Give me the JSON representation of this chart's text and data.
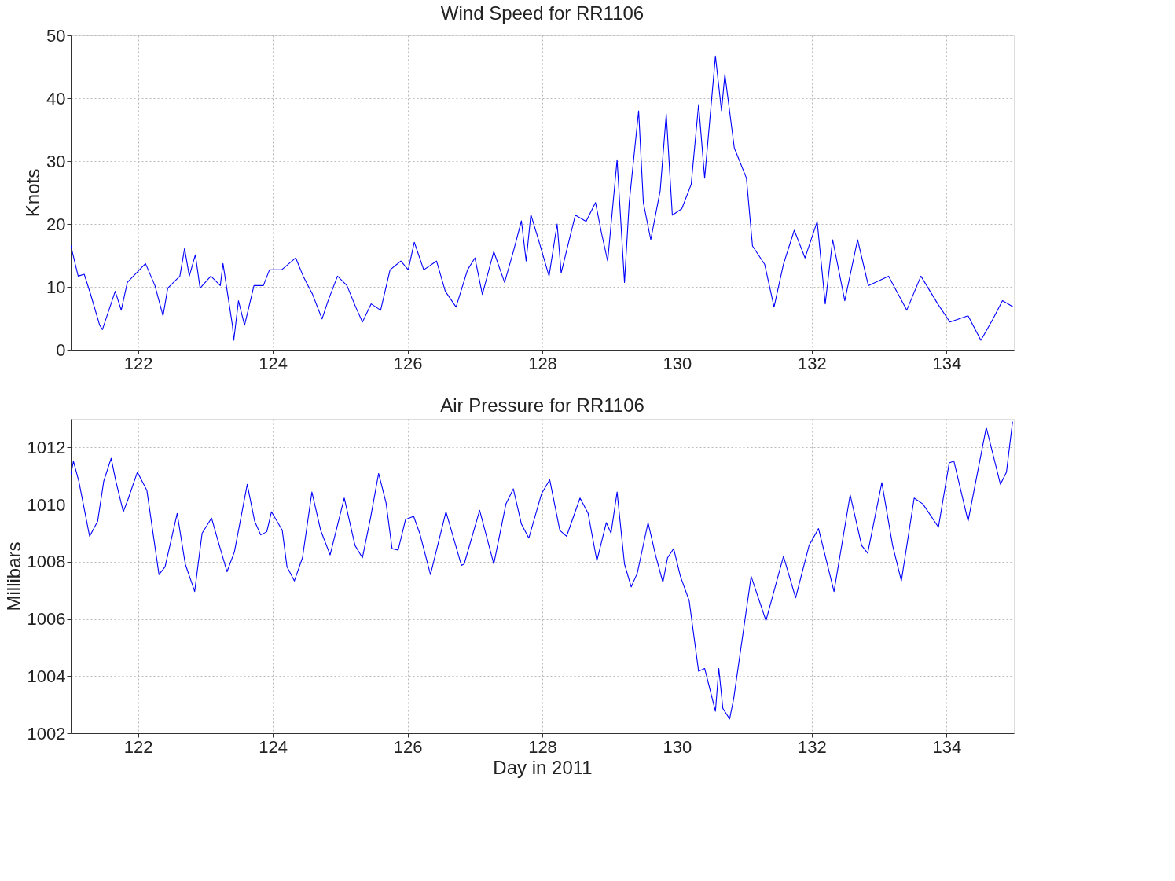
{
  "chart_data": [
    {
      "type": "line",
      "title": "Wind Speed for RR1106",
      "ylabel": "Knots",
      "xlim": [
        121,
        135
      ],
      "ylim": [
        0,
        50
      ],
      "xticks": [
        122,
        124,
        126,
        128,
        130,
        132,
        134
      ],
      "yticks": [
        0,
        10,
        20,
        30,
        40,
        50
      ],
      "grid": true,
      "series": [
        {
          "color": "#0000ff",
          "x": [
            121.0,
            121.11,
            121.2,
            121.29,
            121.43,
            121.47,
            121.66,
            121.75,
            121.84,
            122.02,
            122.11,
            122.25,
            122.37,
            122.44,
            122.62,
            122.69,
            122.76,
            122.85,
            122.92,
            123.08,
            123.22,
            123.26,
            123.4,
            123.42,
            123.49,
            123.58,
            123.72,
            123.86,
            123.95,
            124.13,
            124.34,
            124.45,
            124.59,
            124.73,
            124.82,
            124.96,
            125.1,
            125.23,
            125.33,
            125.46,
            125.6,
            125.74,
            125.9,
            126.01,
            126.1,
            126.24,
            126.43,
            126.56,
            126.72,
            126.89,
            127.0,
            127.11,
            127.28,
            127.44,
            127.57,
            127.69,
            127.76,
            127.83,
            127.94,
            128.1,
            128.22,
            128.28,
            128.38,
            128.49,
            128.65,
            128.79,
            128.88,
            128.97,
            129.11,
            129.22,
            129.29,
            129.43,
            129.5,
            129.61,
            129.75,
            129.84,
            129.93,
            130.07,
            130.21,
            130.32,
            130.41,
            130.57,
            130.66,
            130.71,
            130.85,
            131.03,
            131.12,
            131.3,
            131.44,
            131.58,
            131.74,
            131.9,
            132.08,
            132.2,
            132.31,
            132.49,
            132.68,
            132.84,
            133.14,
            133.41,
            133.62,
            133.87,
            134.05,
            134.32,
            134.51,
            134.69,
            134.83,
            134.99
          ],
          "values": [
            16.6,
            11.7,
            12,
            9,
            3.9,
            3.2,
            9.3,
            6.3,
            10.7,
            12.7,
            13.7,
            10.2,
            5.4,
            9.8,
            11.7,
            16.1,
            11.7,
            15.1,
            9.8,
            11.7,
            10.2,
            13.7,
            3.9,
            1.5,
            7.8,
            3.9,
            10.2,
            10.2,
            12.7,
            12.7,
            14.6,
            11.7,
            8.8,
            4.9,
            7.8,
            11.7,
            10.2,
            6.8,
            4.4,
            7.3,
            6.3,
            12.7,
            14.1,
            12.7,
            17.1,
            12.7,
            14.1,
            9.3,
            6.8,
            12.7,
            14.6,
            8.8,
            15.6,
            10.7,
            15.6,
            20.5,
            14.1,
            21.5,
            17.6,
            11.7,
            20,
            12.2,
            16.6,
            21.4,
            20.4,
            23.4,
            18.5,
            14.1,
            30.2,
            10.7,
            23.4,
            38,
            23.4,
            17.5,
            25.3,
            37.5,
            21.4,
            22.4,
            26.3,
            39,
            27.3,
            46.7,
            38,
            43.8,
            32.1,
            27.3,
            16.5,
            13.6,
            6.8,
            13.6,
            19,
            14.6,
            20.4,
            7.3,
            17.5,
            7.8,
            17.5,
            10.2,
            11.7,
            6.3,
            11.7,
            7.3,
            4.4,
            5.4,
            1.5,
            4.9,
            7.8,
            6.8
          ]
        }
      ]
    },
    {
      "type": "line",
      "title": "Air Pressure for RR1106",
      "xlabel": "Day in 2011",
      "ylabel": "Millibars",
      "xlim": [
        121,
        135
      ],
      "ylim": [
        1002,
        1013
      ],
      "xticks": [
        122,
        124,
        126,
        128,
        130,
        132,
        134
      ],
      "yticks": [
        1002,
        1004,
        1006,
        1008,
        1010,
        1012
      ],
      "grid": true,
      "series": [
        {
          "color": "#0000ff",
          "x": [
            121.0,
            121.04,
            121.12,
            121.28,
            121.4,
            121.49,
            121.6,
            121.67,
            121.78,
            121.85,
            121.99,
            122.13,
            122.31,
            122.4,
            122.58,
            122.7,
            122.84,
            122.95,
            123.09,
            123.18,
            123.32,
            123.43,
            123.62,
            123.73,
            123.82,
            123.91,
            123.98,
            124.14,
            124.21,
            124.32,
            124.44,
            124.58,
            124.71,
            124.85,
            125.06,
            125.22,
            125.33,
            125.45,
            125.57,
            125.68,
            125.77,
            125.86,
            125.97,
            126.09,
            126.18,
            126.34,
            126.57,
            126.8,
            126.84,
            127.07,
            127.28,
            127.46,
            127.57,
            127.69,
            127.8,
            127.99,
            128.11,
            128.26,
            128.36,
            128.56,
            128.68,
            128.81,
            128.95,
            129.02,
            129.11,
            129.22,
            129.32,
            129.41,
            129.57,
            129.68,
            129.79,
            129.86,
            129.95,
            130.05,
            130.18,
            130.32,
            130.41,
            130.57,
            130.62,
            130.68,
            130.78,
            130.84,
            131.1,
            131.32,
            131.58,
            131.76,
            131.96,
            132.1,
            132.33,
            132.57,
            132.74,
            132.83,
            133.04,
            133.2,
            133.33,
            133.52,
            133.65,
            133.88,
            134.04,
            134.11,
            134.32,
            134.59,
            134.8,
            134.89,
            134.98
          ],
          "values": [
            1011.03,
            1011.52,
            1010.82,
            1008.89,
            1009.42,
            1010.82,
            1011.62,
            1010.82,
            1009.75,
            1010.18,
            1011.14,
            1010.5,
            1007.55,
            1007.82,
            1009.69,
            1007.92,
            1006.96,
            1009,
            1009.53,
            1008.78,
            1007.65,
            1008.35,
            1010.71,
            1009.42,
            1008.94,
            1009.05,
            1009.75,
            1009.1,
            1007.82,
            1007.33,
            1008.14,
            1010.44,
            1009.1,
            1008.24,
            1010.23,
            1008.57,
            1008.14,
            1009.53,
            1011.09,
            1010.07,
            1008.46,
            1008.41,
            1009.48,
            1009.59,
            1009,
            1007.55,
            1009.75,
            1007.87,
            1007.92,
            1009.8,
            1007.92,
            1010.02,
            1010.55,
            1009.32,
            1008.83,
            1010.39,
            1010.87,
            1009.1,
            1008.89,
            1010.23,
            1009.69,
            1008.03,
            1009.37,
            1009,
            1010.44,
            1007.92,
            1007.12,
            1007.6,
            1009.37,
            1008.24,
            1007.28,
            1008.14,
            1008.46,
            1007.49,
            1006.64,
            1004.17,
            1004.27,
            1002.77,
            1004.27,
            1002.87,
            1002.5,
            1003.2,
            1007.49,
            1005.94,
            1008.19,
            1006.74,
            1008.57,
            1009.16,
            1006.96,
            1010.34,
            1008.57,
            1008.3,
            1010.77,
            1008.57,
            1007.33,
            1010.23,
            1010.02,
            1009.21,
            1011.46,
            1011.52,
            1009.42,
            1012.7,
            1010.71,
            1011.14,
            1012.9
          ]
        }
      ]
    }
  ]
}
